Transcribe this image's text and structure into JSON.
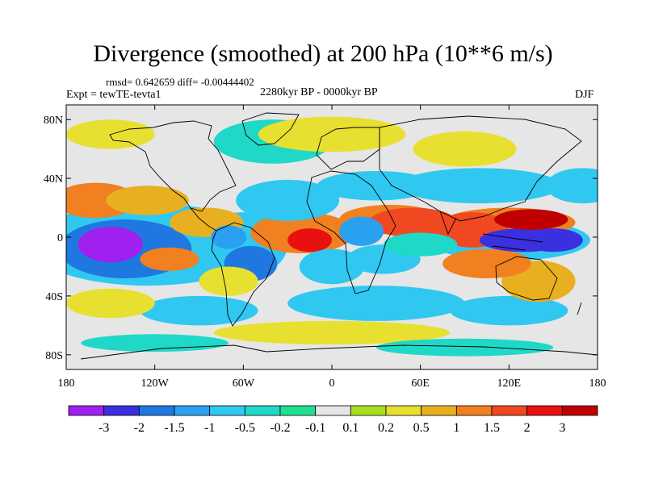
{
  "title": "Divergence (smoothed) at 200 hPa (10**6 m/s)",
  "stats": "rmsd= 0.642659 diff= -0.00444402",
  "expt": "Expt = tewTE-tevta1",
  "period": "2280kyr BP - 0000kyr BP",
  "season": "DJF",
  "map": {
    "lat_ticks": [
      "80N",
      "40N",
      "0",
      "40S",
      "80S"
    ],
    "lon_ticks": [
      "180",
      "120W",
      "60W",
      "0",
      "60E",
      "120E",
      "180"
    ],
    "lon_range": [
      -180,
      180
    ],
    "lat_range": [
      -90,
      90
    ],
    "blobs": [
      {
        "lon": -150,
        "lat": -5,
        "rx": 22,
        "ry": 12,
        "level": -3
      },
      {
        "lon": -140,
        "lat": -8,
        "rx": 45,
        "ry": 20,
        "level": -1.5
      },
      {
        "lon": -125,
        "lat": -5,
        "rx": 80,
        "ry": 28,
        "level": -0.5
      },
      {
        "lon": -160,
        "lat": 25,
        "rx": 28,
        "ry": 12,
        "level": 1
      },
      {
        "lon": -125,
        "lat": 25,
        "rx": 28,
        "ry": 10,
        "level": 0.5
      },
      {
        "lon": -110,
        "lat": -15,
        "rx": 20,
        "ry": 8,
        "level": 1
      },
      {
        "lon": -85,
        "lat": 10,
        "rx": 25,
        "ry": 10,
        "level": 0.5
      },
      {
        "lon": -60,
        "lat": -5,
        "rx": 30,
        "ry": 22,
        "level": -0.5
      },
      {
        "lon": -55,
        "lat": -18,
        "rx": 18,
        "ry": 12,
        "level": -1.5
      },
      {
        "lon": -70,
        "lat": 0,
        "rx": 12,
        "ry": 8,
        "level": -1
      },
      {
        "lon": -70,
        "lat": -30,
        "rx": 20,
        "ry": 10,
        "level": 0.2
      },
      {
        "lon": -20,
        "lat": 3,
        "rx": 35,
        "ry": 14,
        "level": 1
      },
      {
        "lon": -15,
        "lat": -2,
        "rx": 15,
        "ry": 8,
        "level": 2
      },
      {
        "lon": -30,
        "lat": 25,
        "rx": 35,
        "ry": 14,
        "level": -0.5
      },
      {
        "lon": 0,
        "lat": -20,
        "rx": 22,
        "ry": 12,
        "level": -0.5
      },
      {
        "lon": 20,
        "lat": 4,
        "rx": 15,
        "ry": 10,
        "level": -1
      },
      {
        "lon": 40,
        "lat": 12,
        "rx": 35,
        "ry": 10,
        "level": 1
      },
      {
        "lon": 35,
        "lat": -15,
        "rx": 25,
        "ry": 10,
        "level": -0.5
      },
      {
        "lon": 55,
        "lat": 10,
        "rx": 30,
        "ry": 10,
        "level": 1.5
      },
      {
        "lon": 60,
        "lat": -5,
        "rx": 25,
        "ry": 8,
        "level": -0.2
      },
      {
        "lon": 95,
        "lat": 5,
        "rx": 25,
        "ry": 12,
        "level": 1.5
      },
      {
        "lon": 105,
        "lat": -18,
        "rx": 30,
        "ry": 10,
        "level": 1
      },
      {
        "lon": 120,
        "lat": -2,
        "rx": 55,
        "ry": 14,
        "level": -0.5
      },
      {
        "lon": 130,
        "lat": -2,
        "rx": 30,
        "ry": 8,
        "level": -2
      },
      {
        "lon": 120,
        "lat": 10,
        "rx": 45,
        "ry": 10,
        "level": 1
      },
      {
        "lon": 135,
        "lat": 12,
        "rx": 25,
        "ry": 7,
        "level": 3
      },
      {
        "lon": 150,
        "lat": -2,
        "rx": 20,
        "ry": 8,
        "level": -2
      },
      {
        "lon": 140,
        "lat": -30,
        "rx": 25,
        "ry": 14,
        "level": 0.5
      },
      {
        "lon": 170,
        "lat": 35,
        "rx": 25,
        "ry": 12,
        "level": -0.5
      },
      {
        "lon": 100,
        "lat": 35,
        "rx": 55,
        "ry": 12,
        "level": -0.5
      },
      {
        "lon": 30,
        "lat": 35,
        "rx": 40,
        "ry": 10,
        "level": -0.5
      },
      {
        "lon": 90,
        "lat": 60,
        "rx": 35,
        "ry": 12,
        "level": 0.2
      },
      {
        "lon": -40,
        "lat": 65,
        "rx": 40,
        "ry": 15,
        "level": -0.2
      },
      {
        "lon": 0,
        "lat": 70,
        "rx": 50,
        "ry": 12,
        "level": 0.2
      },
      {
        "lon": -150,
        "lat": 70,
        "rx": 30,
        "ry": 10,
        "level": 0.2
      },
      {
        "lon": -90,
        "lat": -50,
        "rx": 40,
        "ry": 10,
        "level": -0.5
      },
      {
        "lon": 30,
        "lat": -45,
        "rx": 60,
        "ry": 12,
        "level": -0.5
      },
      {
        "lon": 120,
        "lat": -50,
        "rx": 40,
        "ry": 10,
        "level": -0.5
      },
      {
        "lon": -150,
        "lat": -45,
        "rx": 30,
        "ry": 10,
        "level": 0.2
      },
      {
        "lon": 0,
        "lat": -65,
        "rx": 80,
        "ry": 8,
        "level": 0.2
      },
      {
        "lon": -120,
        "lat": -72,
        "rx": 50,
        "ry": 6,
        "level": -0.2
      },
      {
        "lon": 90,
        "lat": -75,
        "rx": 60,
        "ry": 6,
        "level": -0.2
      }
    ]
  },
  "colorbar": {
    "labels": [
      "-3",
      "-2",
      "-1.5",
      "-1",
      "-0.5",
      "-0.2",
      "-0.1",
      "0.1",
      "0.2",
      "0.5",
      "1",
      "1.5",
      "2",
      "3"
    ],
    "colors": [
      "#a020f0",
      "#3a30e0",
      "#1e78e0",
      "#2aa0f0",
      "#30c8f0",
      "#20d8c8",
      "#20e090",
      "#e6e6e6",
      "#a8e020",
      "#e8e030",
      "#e8b020",
      "#f08020",
      "#f04820",
      "#e81010",
      "#c00000"
    ]
  }
}
